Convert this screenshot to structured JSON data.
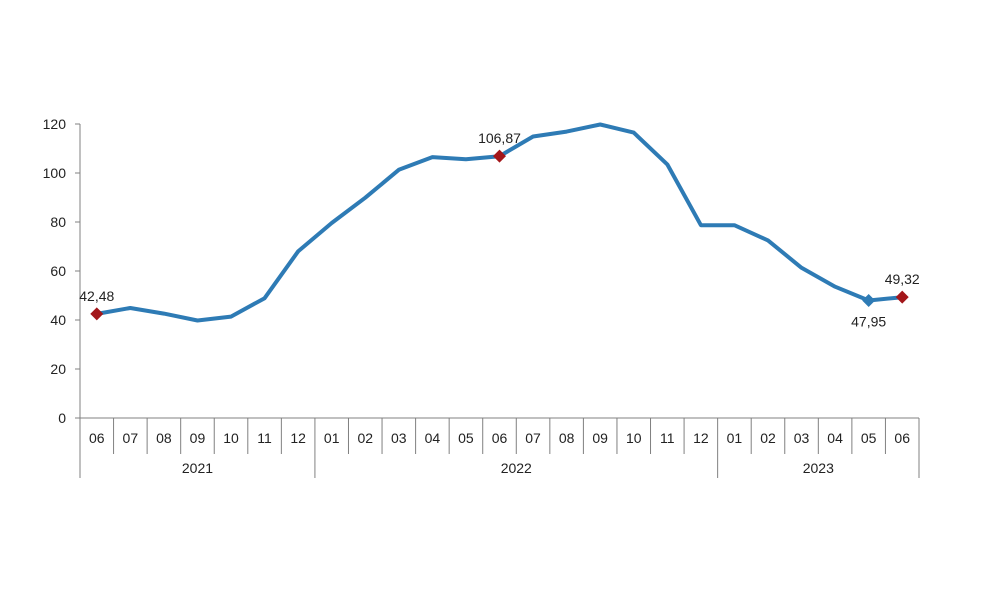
{
  "chart_data": {
    "type": "line",
    "title": "",
    "xlabel": "",
    "ylabel": "",
    "ylim": [
      0,
      120
    ],
    "yticks": [
      0,
      20,
      40,
      60,
      80,
      100,
      120
    ],
    "grid": false,
    "legend": "none",
    "categories": [
      "06",
      "07",
      "08",
      "09",
      "10",
      "11",
      "12",
      "01",
      "02",
      "03",
      "04",
      "05",
      "06",
      "07",
      "08",
      "09",
      "10",
      "11",
      "12",
      "01",
      "02",
      "03",
      "04",
      "05",
      "06"
    ],
    "years": [
      {
        "label": "2021",
        "start": 0,
        "end": 6
      },
      {
        "label": "2022",
        "start": 7,
        "end": 18
      },
      {
        "label": "2023",
        "start": 19,
        "end": 24
      }
    ],
    "series": [
      {
        "values": [
          42.48,
          44.9,
          42.6,
          39.8,
          41.4,
          48.9,
          68.0,
          79.6,
          89.9,
          101.3,
          106.5,
          105.6,
          106.87,
          114.9,
          116.9,
          119.8,
          116.5,
          103.5,
          78.7,
          78.7,
          72.5,
          61.3,
          53.6,
          47.95,
          49.32
        ],
        "color": "#2E7BB5"
      }
    ],
    "annotations": [
      {
        "index": 0,
        "label": "42,48",
        "position": "above",
        "marker": "diamond",
        "color": "#A3161A"
      },
      {
        "index": 12,
        "label": "106,87",
        "position": "above",
        "marker": "diamond",
        "color": "#A3161A"
      },
      {
        "index": 23,
        "label": "47,95",
        "position": "below",
        "marker": "diamond",
        "color": "#2E7BB5"
      },
      {
        "index": 24,
        "label": "49,32",
        "position": "above",
        "marker": "diamond",
        "color": "#A3161A"
      }
    ]
  }
}
